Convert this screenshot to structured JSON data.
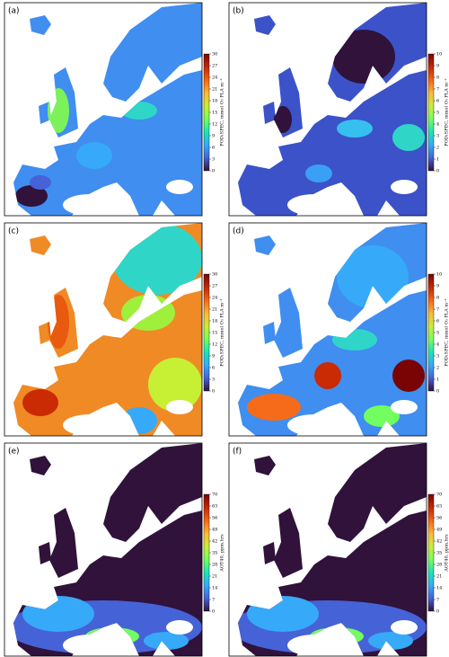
{
  "panels": [
    {
      "label": "(a)",
      "colorbar": {
        "label": "POD₁SPEC, mmol O₃ PLA m⁻²",
        "lim": [
          0,
          30
        ],
        "ticks": [
          0,
          3,
          6,
          9,
          12,
          15,
          18,
          21,
          24,
          27,
          30
        ]
      }
    },
    {
      "label": "(b)",
      "colorbar": {
        "label": "POD₁SPEC, mmol O₃ PLA m⁻²",
        "lim": [
          0,
          10
        ],
        "ticks": [
          0,
          1,
          2,
          3,
          4,
          5,
          6,
          7,
          8,
          9,
          10
        ]
      }
    },
    {
      "label": "(c)",
      "colorbar": {
        "label": "POD₁SPEC, mmol O₃ PLA m⁻²",
        "lim": [
          0,
          30
        ],
        "ticks": [
          0,
          3,
          6,
          9,
          12,
          15,
          18,
          21,
          24,
          27,
          30
        ]
      }
    },
    {
      "label": "(d)",
      "colorbar": {
        "label": "POD₁SPEC, mmol O₃ PLA m⁻²",
        "lim": [
          0,
          10
        ],
        "ticks": [
          0,
          1,
          2,
          3,
          4,
          5,
          6,
          7,
          8,
          9,
          10
        ]
      }
    },
    {
      "label": "(e)",
      "colorbar": {
        "label": "AOT40, ppm.hrs",
        "lim": [
          0,
          70
        ],
        "ticks": [
          0,
          7,
          14,
          21,
          28,
          35,
          42,
          49,
          56,
          63,
          70
        ]
      }
    },
    {
      "label": "(f)",
      "colorbar": {
        "label": "AOT40, ppm.hrs",
        "lim": [
          0,
          70
        ],
        "ticks": [
          0,
          7,
          14,
          21,
          28,
          35,
          42,
          49,
          56,
          63,
          70
        ]
      }
    }
  ]
}
